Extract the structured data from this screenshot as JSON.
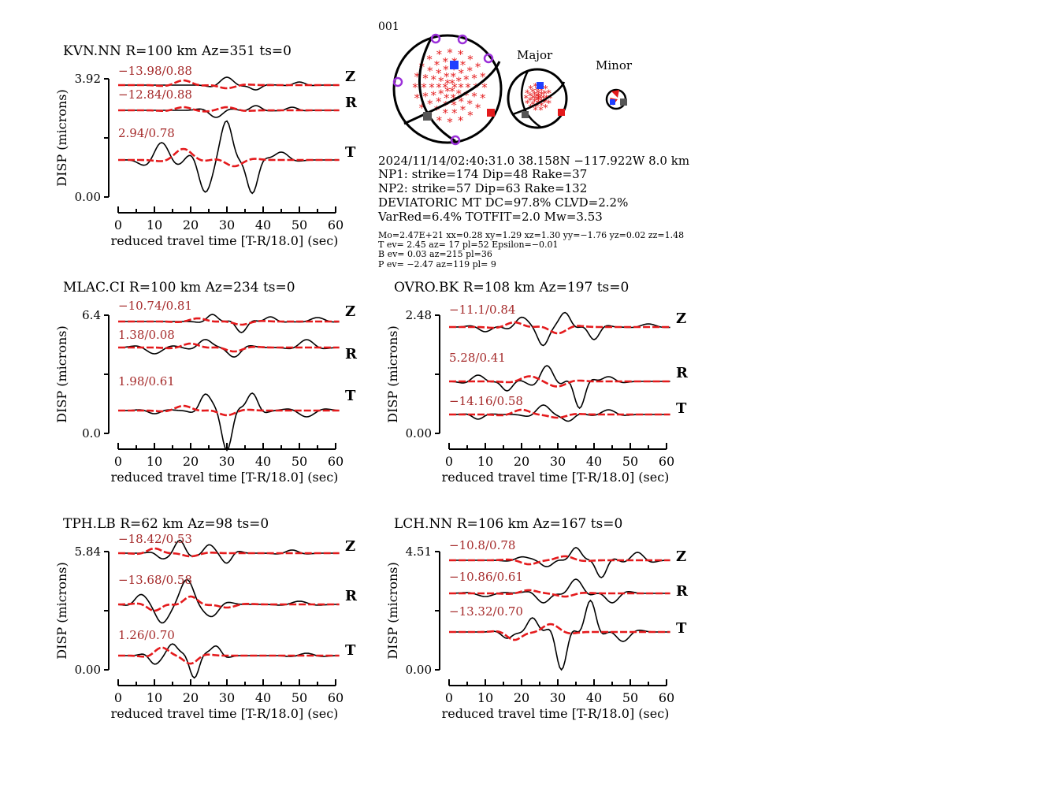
{
  "colors": {
    "observed": "#000000",
    "synthetic": "#e41a1c",
    "label": "#a52a2a",
    "compression": "#e41a1c",
    "tension_axis": "#1f3fff",
    "station_marker": "#9b30d9",
    "null_axis": "#555555"
  },
  "event": {
    "id": "001",
    "origin": "2024/11/14/02:40:31.0 38.158N −117.922W 8.0 km",
    "np1": "NP1: strike=174 Dip=48 Rake=37",
    "np2": "NP2: strike=57 Dip=63 Rake=132",
    "deviatoric": "DEVIATORIC MT DC=97.8% CLVD=2.2%",
    "fit": "VarRed=6.4% TOTFIT=2.0 Mw=3.53",
    "mt": "Mo=2.47E+21 xx=0.28 xy=1.29 xz=1.30 yy=−1.76 yz=0.02 zz=1.48",
    "t_ev": "T ev=  2.45 az= 17 pl=52 Epsilon=−0.01",
    "b_ev": "B ev=  0.03 az=215 pl=36",
    "p_ev": "P ev= −2.47 az=119 pl= 9",
    "major_label": "Major",
    "minor_label": "Minor"
  },
  "chart_data": [
    {
      "type": "line",
      "title": "KVN.NN R=100 km Az=351 ts=0",
      "xlabel": "reduced travel time [T-R/18.0] (sec)",
      "ylabel": "DISP (microns)",
      "xlim": [
        0,
        60
      ],
      "x_ticks": [
        "0",
        "10",
        "20",
        "30",
        "40",
        "50",
        "60"
      ],
      "ylim": [
        0.0,
        3.92
      ],
      "ytick_labels": [
        "3.92",
        "0.00"
      ],
      "series": [
        {
          "component": "Z",
          "annotation": "−13.98/0.88"
        },
        {
          "component": "R",
          "annotation": "−12.84/0.88"
        },
        {
          "component": "T",
          "annotation": "2.94/0.78"
        }
      ]
    },
    {
      "type": "line",
      "title": "MLAC.CI R=100 km Az=234 ts=0",
      "xlabel": "reduced travel time [T-R/18.0] (sec)",
      "ylabel": "DISP (microns)",
      "xlim": [
        0,
        60
      ],
      "x_ticks": [
        "0",
        "10",
        "20",
        "30",
        "40",
        "50",
        "60"
      ],
      "ylim": [
        0.0,
        6.4
      ],
      "ytick_labels": [
        "6.4",
        "0.0"
      ],
      "series": [
        {
          "component": "Z",
          "annotation": "−10.74/0.81"
        },
        {
          "component": "R",
          "annotation": "1.38/0.08"
        },
        {
          "component": "T",
          "annotation": "1.98/0.61"
        }
      ]
    },
    {
      "type": "line",
      "title": "OVRO.BK R=108 km Az=197 ts=0",
      "xlabel": "reduced travel time [T-R/18.0] (sec)",
      "ylabel": "DISP (microns)",
      "xlim": [
        0,
        60
      ],
      "x_ticks": [
        "0",
        "10",
        "20",
        "30",
        "40",
        "50",
        "60"
      ],
      "ylim": [
        0.0,
        2.48
      ],
      "ytick_labels": [
        "2.48",
        "0.00"
      ],
      "series": [
        {
          "component": "Z",
          "annotation": "−11.1/0.84"
        },
        {
          "component": "R",
          "annotation": "5.28/0.41"
        },
        {
          "component": "T",
          "annotation": "−14.16/0.58"
        }
      ]
    },
    {
      "type": "line",
      "title": "TPH.LB R=62 km Az=98 ts=0",
      "xlabel": "reduced travel time [T-R/18.0] (sec)",
      "ylabel": "DISP (microns)",
      "xlim": [
        0,
        60
      ],
      "x_ticks": [
        "0",
        "10",
        "20",
        "30",
        "40",
        "50",
        "60"
      ],
      "ylim": [
        0.0,
        5.84
      ],
      "ytick_labels": [
        "5.84",
        "0.00"
      ],
      "series": [
        {
          "component": "Z",
          "annotation": "−18.42/0.53"
        },
        {
          "component": "R",
          "annotation": "−13.68/0.58"
        },
        {
          "component": "T",
          "annotation": "1.26/0.70"
        }
      ]
    },
    {
      "type": "line",
      "title": "LCH.NN R=106 km Az=167 ts=0",
      "xlabel": "reduced travel time [T-R/18.0] (sec)",
      "ylabel": "DISP (microns)",
      "xlim": [
        0,
        60
      ],
      "x_ticks": [
        "0",
        "10",
        "20",
        "30",
        "40",
        "50",
        "60"
      ],
      "ylim": [
        0.0,
        4.51
      ],
      "ytick_labels": [
        "4.51",
        "0.00"
      ],
      "series": [
        {
          "component": "Z",
          "annotation": "−10.8/0.78"
        },
        {
          "component": "R",
          "annotation": "−10.86/0.61"
        },
        {
          "component": "T",
          "annotation": "−13.32/0.70"
        }
      ]
    }
  ]
}
